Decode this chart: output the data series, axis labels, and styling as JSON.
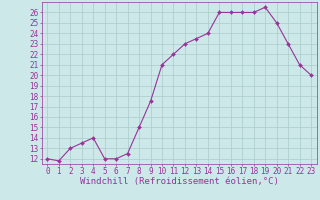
{
  "x": [
    0,
    1,
    2,
    3,
    4,
    5,
    6,
    7,
    8,
    9,
    10,
    11,
    12,
    13,
    14,
    15,
    16,
    17,
    18,
    19,
    20,
    21,
    22,
    23
  ],
  "y": [
    12,
    11.8,
    13,
    13.5,
    14,
    12,
    12,
    12.5,
    15,
    17.5,
    21,
    22,
    23,
    23.5,
    24,
    26,
    26,
    26,
    26,
    26.5,
    25,
    23,
    21,
    20
  ],
  "line_color": "#993399",
  "marker_color": "#993399",
  "bg_color": "#cce8e8",
  "grid_color": "#aacccc",
  "xlabel": "Windchill (Refroidissement éolien,°C)",
  "ylabel_ticks": [
    12,
    13,
    14,
    15,
    16,
    17,
    18,
    19,
    20,
    21,
    22,
    23,
    24,
    25,
    26
  ],
  "ylim": [
    11.5,
    27
  ],
  "xlim": [
    -0.5,
    23.5
  ],
  "label_fontsize": 6.5,
  "tick_fontsize": 5.5
}
